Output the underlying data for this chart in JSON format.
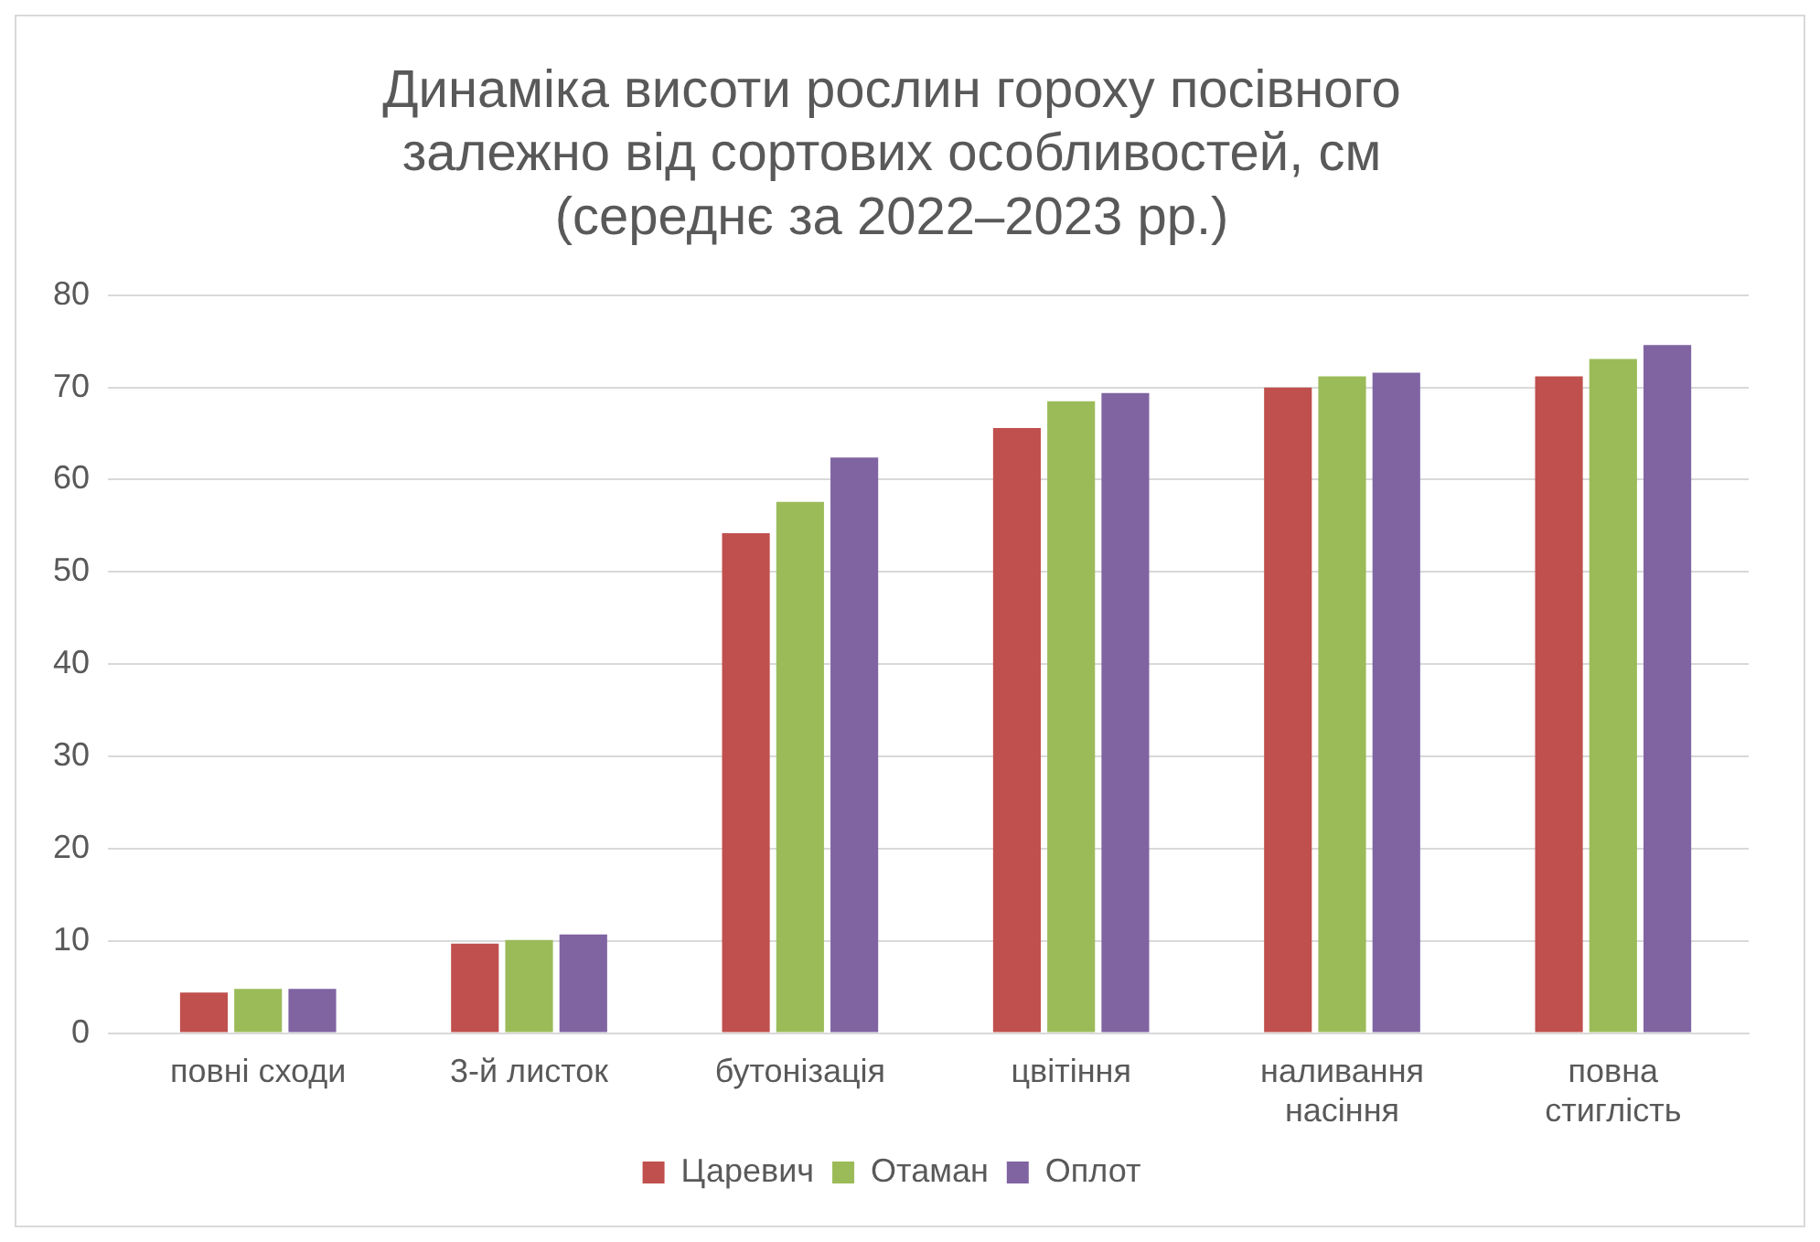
{
  "chart_data": {
    "type": "bar",
    "title": "Динаміка висоти рослин гороху посівного\nзалежно від сортових особливостей, см\n(середнє за 2022–2023 рр.)",
    "categories": [
      "повні сходи",
      "3-й листок",
      "бутонізація",
      "цвітіння",
      "наливання насіння",
      "повна стиглість"
    ],
    "series": [
      {
        "name": "Царевич",
        "color": "#c0504d",
        "values": [
          4.4,
          9.7,
          54.2,
          65.6,
          70.0,
          71.2
        ]
      },
      {
        "name": "Отаман",
        "color": "#9bbb59",
        "values": [
          4.8,
          10.1,
          57.6,
          68.5,
          71.2,
          73.1
        ]
      },
      {
        "name": "Оплот",
        "color": "#8064a2",
        "values": [
          4.8,
          10.7,
          62.4,
          69.4,
          71.6,
          74.6
        ]
      }
    ],
    "ylim": [
      0,
      80
    ],
    "yticks": [
      0,
      10,
      20,
      30,
      40,
      50,
      60,
      70,
      80
    ],
    "grid": "y",
    "legend": "bottom"
  }
}
